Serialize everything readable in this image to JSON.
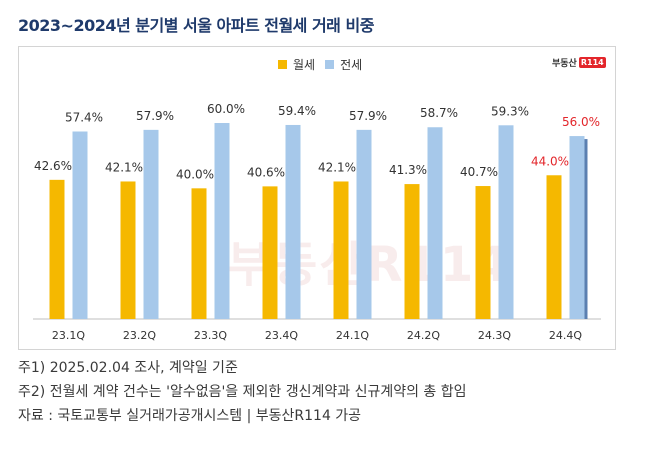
{
  "title": "2023~2024년 분기별 서울 아파트 전월세 거래 비중",
  "legend": {
    "monthly": "월세",
    "jeonse": "전세"
  },
  "logo": {
    "text": "부동산",
    "badge": "R114"
  },
  "watermark": "부동산R114",
  "colors": {
    "monthly": "#f5b800",
    "jeonse": "#a6c8ea",
    "highlight_label": "#e3262b",
    "label": "#333333"
  },
  "chart_data": {
    "type": "bar",
    "categories": [
      "23.1Q",
      "23.2Q",
      "23.3Q",
      "23.4Q",
      "24.1Q",
      "24.2Q",
      "24.3Q",
      "24.4Q"
    ],
    "series": [
      {
        "name": "월세",
        "values": [
          42.6,
          42.1,
          40.0,
          40.6,
          42.1,
          41.3,
          40.7,
          44.0
        ],
        "labels": [
          "42.6%",
          "42.1%",
          "40.0%",
          "40.6%",
          "42.1%",
          "41.3%",
          "40.7%",
          "44.0%"
        ]
      },
      {
        "name": "전세",
        "values": [
          57.4,
          57.9,
          60.0,
          59.4,
          57.9,
          58.7,
          59.3,
          56.0
        ],
        "labels": [
          "57.4%",
          "57.9%",
          "60.0%",
          "59.4%",
          "57.9%",
          "58.7%",
          "59.3%",
          "56.0%"
        ]
      }
    ],
    "highlight_category": "24.4Q",
    "ylim": [
      0,
      70
    ],
    "grid": false,
    "legend_position": "top-center"
  },
  "notes": [
    "주1) 2025.02.04 조사, 계약일 기준",
    "주2) 전월세 계약 건수는 '알수없음'을 제외한 갱신계약과 신규계약의 총 합임",
    "자료 : 국토교통부 실거래가공개시스템 | 부동산R114 가공"
  ]
}
